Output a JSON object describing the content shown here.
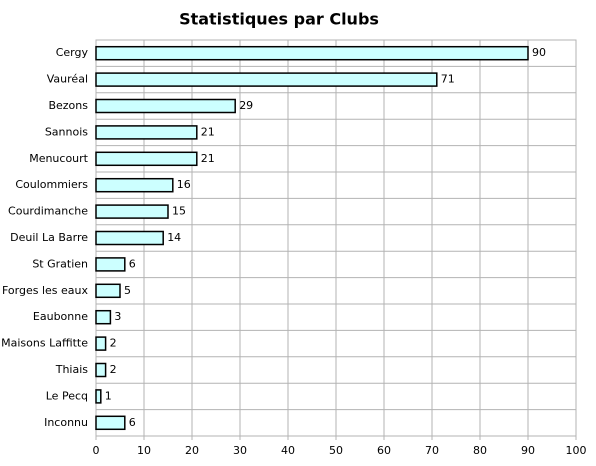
{
  "chart_data": {
    "type": "bar",
    "orientation": "horizontal",
    "title": "Statistiques par Clubs",
    "categories": [
      "Cergy",
      "Vauréal",
      "Bezons",
      "Sannois",
      "Menucourt",
      "Coulommiers",
      "Courdimanche",
      "Deuil La Barre",
      "St Gratien",
      "Forges les eaux",
      "Eaubonne",
      "Maisons Laffitte",
      "Thiais",
      "Le Pecq",
      "Inconnu"
    ],
    "values": [
      90,
      71,
      29,
      21,
      21,
      16,
      15,
      14,
      6,
      5,
      3,
      2,
      2,
      1,
      6
    ],
    "color": "#ccffff",
    "xlim": [
      0,
      100
    ],
    "xticks": [
      0,
      10,
      20,
      30,
      40,
      50,
      60,
      70,
      80,
      90,
      100
    ],
    "grid": true
  }
}
